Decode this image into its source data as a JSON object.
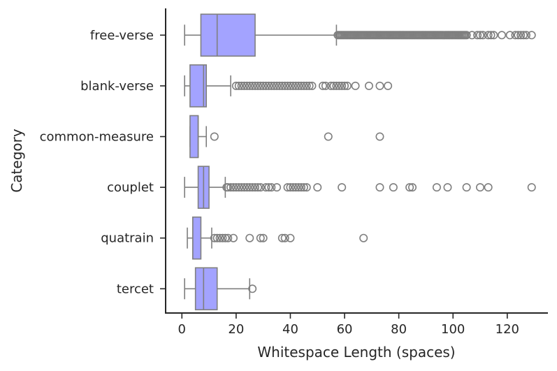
{
  "chart_data": {
    "type": "boxplot",
    "orientation": "horizontal",
    "xlabel": "Whitespace Length (spaces)",
    "ylabel": "Category",
    "xlim": [
      -6,
      135
    ],
    "xticks": [
      0,
      20,
      40,
      60,
      80,
      100,
      120
    ],
    "grid": false,
    "colors": {
      "box_fill": "#a3a3ff",
      "box_edge": "#7f7f7f",
      "axis": "#262626"
    },
    "categories": [
      "free-verse",
      "blank-verse",
      "common-measure",
      "couplet",
      "quatrain",
      "tercet"
    ],
    "series": [
      {
        "category": "free-verse",
        "whisker_low": 1,
        "q1": 7,
        "median": 13,
        "q3": 27,
        "whisker_high": 57,
        "outliers": [
          57.5,
          58,
          58.5,
          59,
          59.5,
          60,
          60.5,
          61,
          61.5,
          62,
          62.5,
          63,
          63.5,
          64,
          64.5,
          65,
          65.5,
          66,
          66.5,
          67,
          67.5,
          68,
          68.5,
          69,
          69.5,
          70,
          70.5,
          71,
          71.5,
          72,
          72.5,
          73,
          73.5,
          74,
          74.5,
          75,
          75.5,
          76,
          76.5,
          77,
          77.5,
          78,
          78.5,
          79,
          79.5,
          80,
          80.5,
          81,
          81.5,
          82,
          82.5,
          83,
          83.5,
          84,
          84.5,
          85,
          85.5,
          86,
          86.5,
          87,
          87.5,
          88,
          88.5,
          89,
          89.5,
          90,
          90.5,
          91,
          91.5,
          92,
          92.5,
          93,
          93.5,
          94,
          94.5,
          95,
          95.5,
          96,
          96.5,
          97,
          97.5,
          98,
          98.5,
          99,
          99.5,
          100,
          100.5,
          101,
          101.5,
          102,
          102.5,
          103,
          103.5,
          104,
          104.5,
          105,
          107,
          109,
          110,
          111,
          113,
          114,
          115,
          118,
          121,
          123,
          124,
          125,
          126,
          127,
          129
        ]
      },
      {
        "category": "blank-verse",
        "whisker_low": 1,
        "q1": 3,
        "median": 8,
        "q3": 9,
        "whisker_high": 18,
        "outliers": [
          20,
          21,
          22,
          23,
          24,
          25,
          26,
          27,
          28,
          29,
          30,
          31,
          32,
          33,
          34,
          35,
          36,
          37,
          38,
          39,
          40,
          41,
          42,
          43,
          44,
          45,
          46,
          47,
          48,
          52,
          53,
          55,
          56,
          57,
          58,
          59,
          60,
          61,
          64,
          69,
          73,
          76
        ]
      },
      {
        "category": "common-measure",
        "whisker_low": 3,
        "q1": 3,
        "median": 6,
        "q3": 6,
        "whisker_high": 9,
        "outliers": [
          12,
          54,
          73
        ]
      },
      {
        "category": "couplet",
        "whisker_low": 1,
        "q1": 6,
        "median": 8,
        "q3": 10,
        "whisker_high": 16,
        "outliers": [
          16.5,
          17,
          18,
          19,
          20,
          21,
          22,
          23,
          24,
          25,
          26,
          27,
          28,
          29,
          31,
          32,
          33,
          35,
          39,
          40,
          41,
          42,
          43,
          44,
          45,
          46,
          50,
          59,
          73,
          78,
          84,
          85,
          94,
          98,
          105,
          110,
          113,
          129
        ]
      },
      {
        "category": "quatrain",
        "whisker_low": 2,
        "q1": 4,
        "median": 4,
        "q3": 7,
        "whisker_high": 11,
        "outliers": [
          12,
          13,
          14,
          15,
          16,
          17,
          19,
          25,
          29,
          30,
          37,
          38,
          40,
          67
        ]
      },
      {
        "category": "tercet",
        "whisker_low": 1,
        "q1": 5,
        "median": 8,
        "q3": 13,
        "whisker_high": 25,
        "outliers": [
          26
        ]
      }
    ]
  }
}
